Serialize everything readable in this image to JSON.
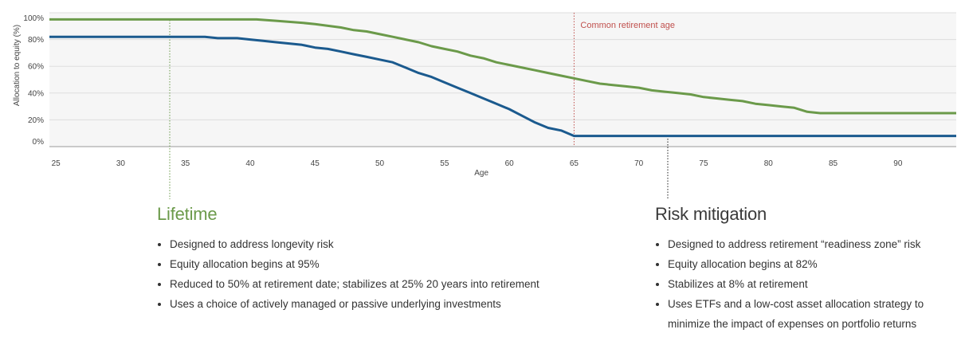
{
  "chart_data": {
    "type": "line",
    "xlabel": "Age",
    "ylabel": "Allocation to equity (%)",
    "xlim": [
      24.5,
      94.5
    ],
    "ylim": [
      0,
      100
    ],
    "x_ticks": [
      25,
      30,
      35,
      40,
      45,
      50,
      55,
      60,
      65,
      70,
      75,
      80,
      85,
      90
    ],
    "y_ticks": [
      {
        "value": 0,
        "label": "0%"
      },
      {
        "value": 20,
        "label": "20%"
      },
      {
        "value": 40,
        "label": "40%"
      },
      {
        "value": 60,
        "label": "60%"
      },
      {
        "value": 80,
        "label": "80%"
      },
      {
        "value": 100,
        "label": "100%"
      }
    ],
    "highlight_tick": 65,
    "annotation": {
      "x": 65,
      "label": "Common retirement age",
      "color": "#c0504d"
    },
    "grid": true,
    "series": [
      {
        "name": "Lifetime",
        "color": "#6b9a4a",
        "points": [
          [
            24.5,
            95
          ],
          [
            40.5,
            95
          ],
          [
            42,
            94
          ],
          [
            44,
            92.5
          ],
          [
            45,
            91.5
          ],
          [
            47,
            89
          ],
          [
            48,
            87
          ],
          [
            49,
            86
          ],
          [
            50,
            84
          ],
          [
            51,
            82
          ],
          [
            52,
            80
          ],
          [
            53,
            78
          ],
          [
            54,
            75
          ],
          [
            55,
            73
          ],
          [
            56,
            71
          ],
          [
            57,
            68
          ],
          [
            58,
            66
          ],
          [
            59,
            63
          ],
          [
            60,
            61
          ],
          [
            61,
            59
          ],
          [
            62,
            57
          ],
          [
            63,
            55
          ],
          [
            64,
            53
          ],
          [
            65,
            51
          ],
          [
            66,
            49
          ],
          [
            67,
            47
          ],
          [
            68,
            46
          ],
          [
            69,
            45
          ],
          [
            70,
            44
          ],
          [
            71,
            42
          ],
          [
            72,
            41
          ],
          [
            73,
            40
          ],
          [
            74,
            39
          ],
          [
            75,
            37
          ],
          [
            76,
            36
          ],
          [
            77,
            35
          ],
          [
            78,
            34
          ],
          [
            79,
            32
          ],
          [
            80,
            31
          ],
          [
            81,
            30
          ],
          [
            82,
            29
          ],
          [
            83,
            26
          ],
          [
            84,
            25
          ],
          [
            85,
            25
          ],
          [
            94.5,
            25
          ]
        ]
      },
      {
        "name": "Risk mitigation",
        "color": "#1b5a8e",
        "points": [
          [
            24.5,
            82
          ],
          [
            36.5,
            82
          ],
          [
            37.5,
            81
          ],
          [
            39,
            81
          ],
          [
            40,
            80
          ],
          [
            41,
            79
          ],
          [
            42,
            78
          ],
          [
            43,
            77
          ],
          [
            44,
            76
          ],
          [
            45,
            74
          ],
          [
            46,
            73
          ],
          [
            47,
            71
          ],
          [
            48,
            69
          ],
          [
            49,
            67
          ],
          [
            50,
            65
          ],
          [
            51,
            63
          ],
          [
            52,
            59
          ],
          [
            53,
            55
          ],
          [
            54,
            52
          ],
          [
            55,
            48
          ],
          [
            56,
            44
          ],
          [
            57,
            40
          ],
          [
            58,
            36
          ],
          [
            59,
            32
          ],
          [
            60,
            28
          ],
          [
            61,
            23
          ],
          [
            62,
            18
          ],
          [
            63,
            14
          ],
          [
            64,
            12
          ],
          [
            65,
            8
          ],
          [
            94.5,
            8
          ]
        ]
      }
    ]
  },
  "panels": {
    "lifetime": {
      "title": "Lifetime",
      "bullets": [
        "Designed to address longevity risk",
        "Equity allocation begins at 95%",
        "Reduced to 50% at retirement date; stabilizes at 25% 20 years into retirement",
        "Uses a choice of actively managed or passive underlying investments"
      ]
    },
    "risk": {
      "title": "Risk mitigation",
      "bullets": [
        "Designed to address retirement “readiness zone” risk",
        "Equity allocation begins at 82%",
        "Stabilizes at 8% at retirement",
        "Uses ETFs and a low-cost asset allocation strategy to minimize the impact of expenses on portfolio returns"
      ]
    }
  },
  "colors": {
    "plot_background": "#f6f6f6",
    "gridline": "#dddddd",
    "lifetime": "#6b9a4a",
    "risk": "#1b5a8e",
    "retirement": "#c0504d"
  }
}
